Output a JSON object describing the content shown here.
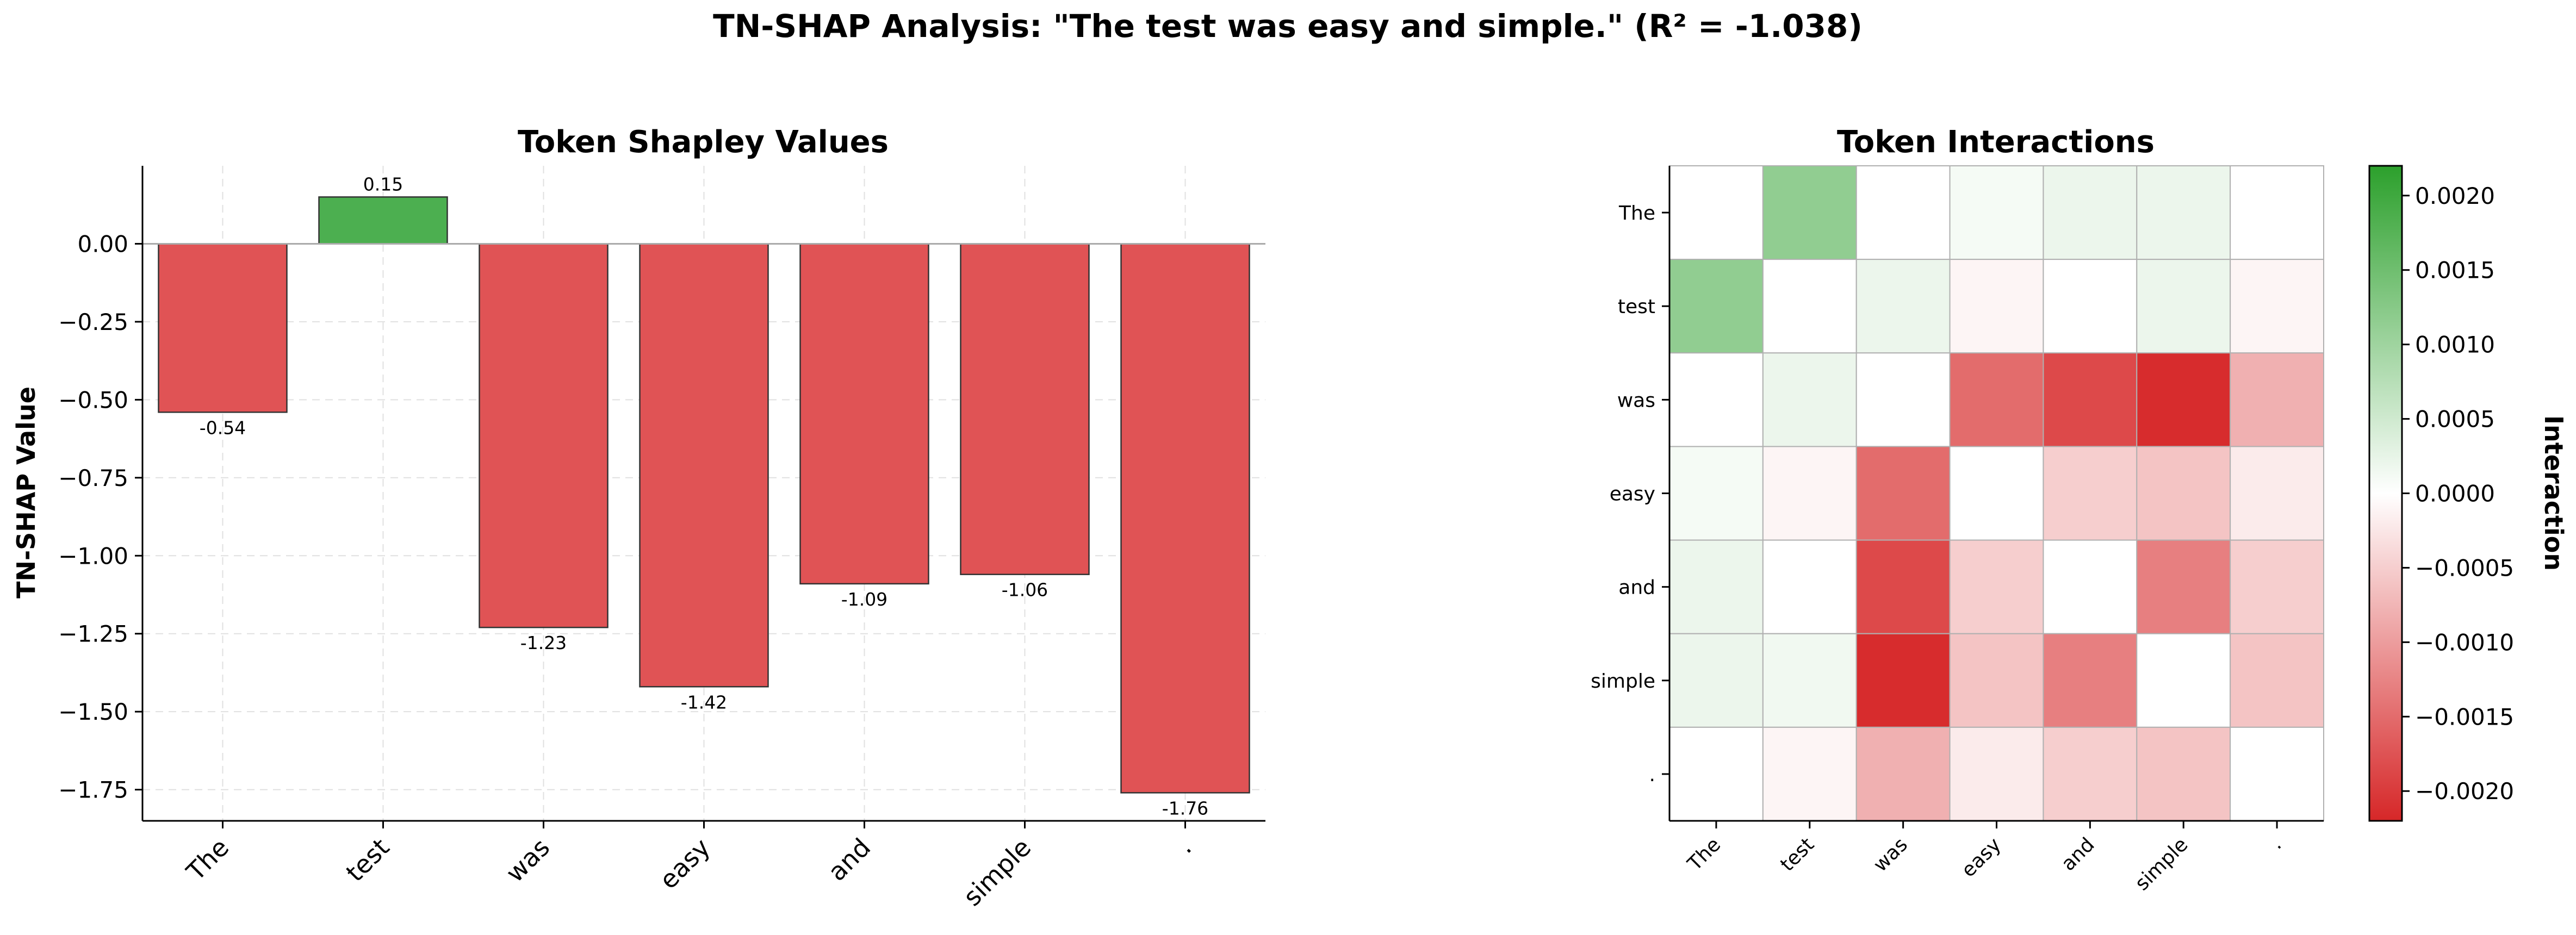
{
  "suptitle": "TN-SHAP Analysis: \"The test was easy and simple.\" (R² = -1.038)",
  "chart_data": [
    {
      "type": "bar",
      "title": "Token Shapley Values",
      "xlabel": "",
      "ylabel": "TN-SHAP Value",
      "categories": [
        "The",
        "test",
        "was",
        "easy",
        "and",
        "simple",
        "."
      ],
      "values": [
        -0.54,
        0.15,
        -1.23,
        -1.42,
        -1.09,
        -1.06,
        -1.76
      ],
      "value_labels": [
        "-0.54",
        "0.15",
        "-1.23",
        "-1.42",
        "-1.09",
        "-1.06",
        "-1.76"
      ],
      "ylim": [
        -1.85,
        0.25
      ],
      "yticks": [
        0.0,
        -0.25,
        -0.5,
        -0.75,
        -1.0,
        -1.25,
        -1.5,
        -1.75
      ],
      "ytick_labels": [
        "0.00",
        "−0.25",
        "−0.50",
        "−0.75",
        "−1.00",
        "−1.25",
        "−1.50",
        "−1.75"
      ],
      "grid": true,
      "colors": {
        "positive": "#4caf50",
        "negative": "#e05355",
        "edge": "#333333",
        "zero_line": "#aaaaaa",
        "grid": "#e0e0e0"
      }
    },
    {
      "type": "heatmap",
      "title": "Token Interactions",
      "x_labels": [
        "The",
        "test",
        "was",
        "easy",
        "and",
        "simple",
        "."
      ],
      "y_labels": [
        "The",
        "test",
        "was",
        "easy",
        "and",
        "simple",
        "."
      ],
      "matrix": [
        [
          0,
          0.00115,
          0,
          0.0001,
          0.0002,
          0.0002,
          0
        ],
        [
          0.00115,
          0,
          0.0002,
          -0.0001,
          0,
          0.0002,
          -0.0001
        ],
        [
          0,
          0.0002,
          0,
          -0.0015,
          -0.00185,
          -0.00215,
          -0.0008
        ],
        [
          0.0001,
          -0.0001,
          -0.0015,
          0,
          -0.0005,
          -0.0006,
          -0.0002
        ],
        [
          0.0002,
          0,
          -0.00185,
          -0.0005,
          0,
          -0.0013,
          -0.0005
        ],
        [
          0.0002,
          0.00015,
          -0.00215,
          -0.0006,
          -0.0013,
          0,
          -0.0006
        ],
        [
          0,
          -0.0001,
          -0.0008,
          -0.0002,
          -0.0005,
          -0.0006,
          0
        ]
      ],
      "colorbar": {
        "label": "Interaction",
        "range": [
          -0.0022,
          0.0022
        ],
        "ticks": [
          0.002,
          0.0015,
          0.001,
          0.0005,
          0.0,
          -0.0005,
          -0.001,
          -0.0015,
          -0.002
        ],
        "tick_labels": [
          "0.0020",
          "0.0015",
          "0.0010",
          "0.0005",
          "0.0000",
          "−0.0005",
          "−0.0010",
          "−0.0015",
          "−0.0020"
        ],
        "colors": {
          "low": "#d62728",
          "mid": "#ffffff",
          "high": "#2ca02c"
        }
      }
    }
  ]
}
